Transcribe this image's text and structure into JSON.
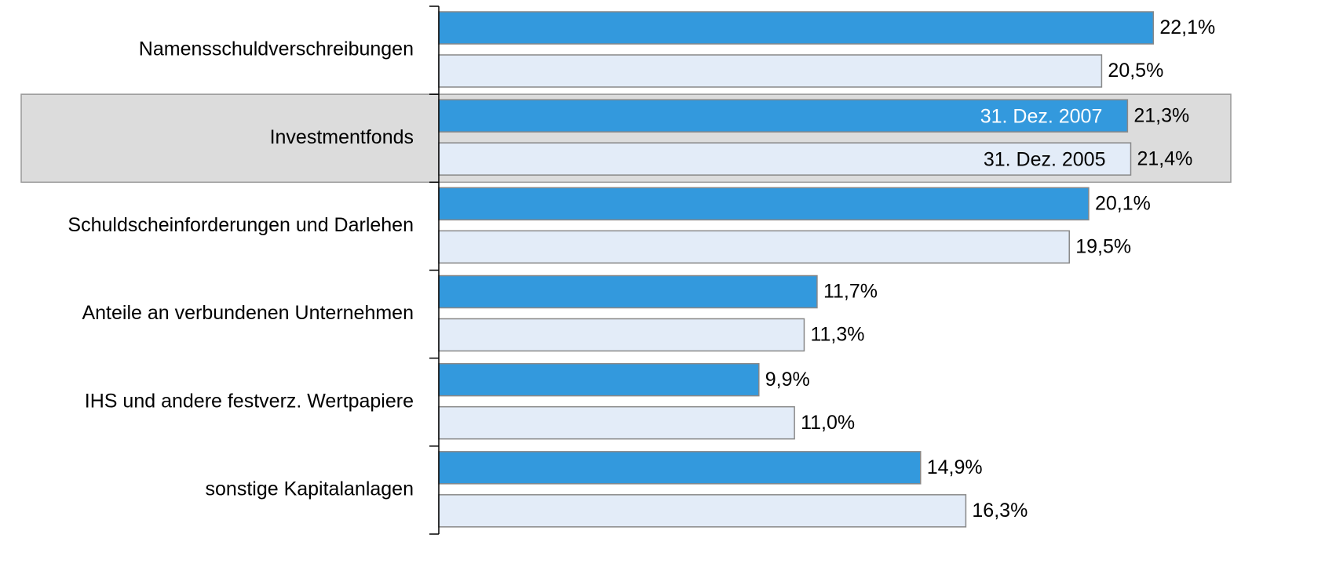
{
  "chart_data": {
    "type": "hbar",
    "categories": [
      "Namensschuldverschreibungen",
      "Investmentfonds",
      "Schuldscheinforderungen und Darlehen",
      "Anteile an verbundenen Unternehmen",
      "IHS und andere festverz. Wertpapiere",
      "sonstige Kapitalanlagen"
    ],
    "series": [
      {
        "name": "31. Dez. 2007",
        "color": "#3399dd",
        "values": [
          22.1,
          21.3,
          20.1,
          11.7,
          9.9,
          14.9
        ],
        "value_labels": [
          "22,1%",
          "21,3%",
          "20,1%",
          "11,7%",
          "9,9%",
          "14,9%"
        ]
      },
      {
        "name": "31. Dez. 2005",
        "color": "#e3ecf8",
        "values": [
          20.5,
          21.4,
          19.5,
          11.3,
          11.0,
          16.3
        ],
        "value_labels": [
          "20,5%",
          "21,4%",
          "19,5%",
          "11,3%",
          "11,0%",
          "16,3%"
        ]
      }
    ],
    "xlim": [
      0,
      27.7
    ],
    "highlight": 1
  }
}
